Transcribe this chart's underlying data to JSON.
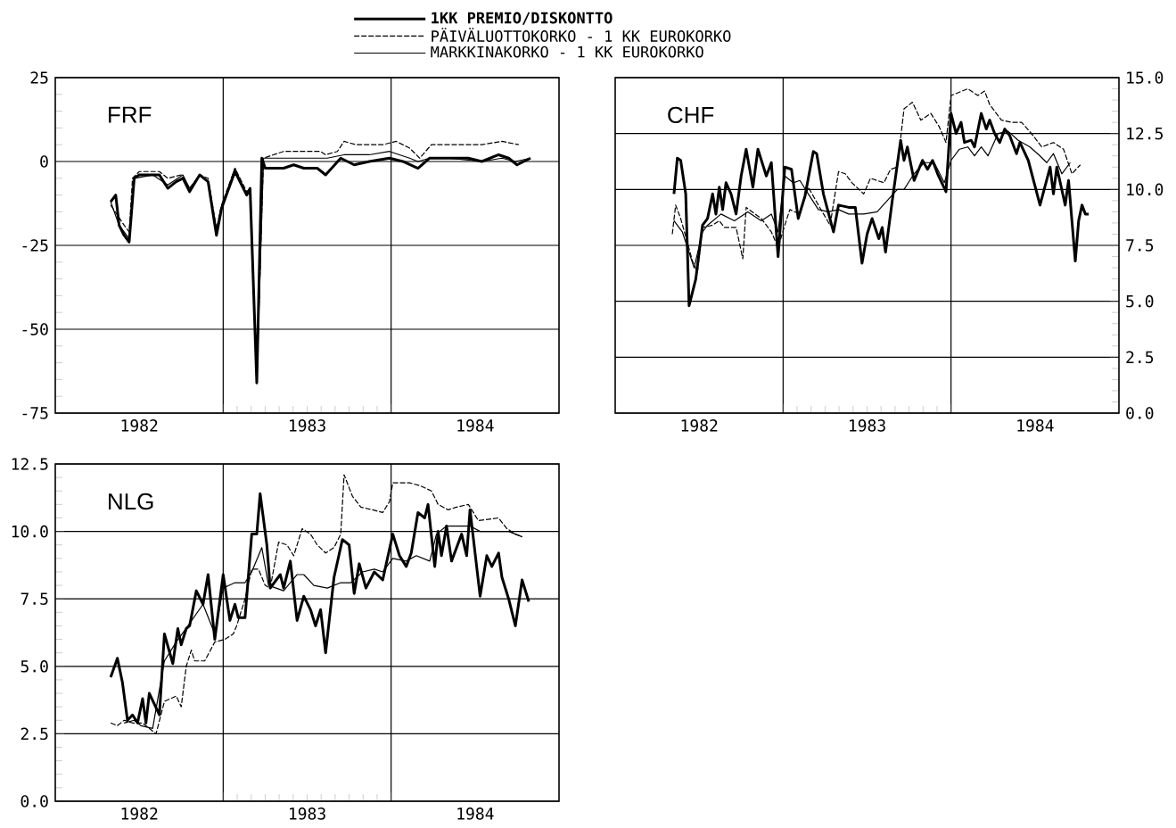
{
  "chart_data": [
    {
      "type": "line",
      "title": "FRF",
      "xlim": [
        1982,
        1985
      ],
      "xticks": [
        {
          "value": 1982.5,
          "label": "1982"
        },
        {
          "value": 1983,
          "label": null
        },
        {
          "value": 1983.5,
          "label": "1983"
        },
        {
          "value": 1984,
          "label": null
        },
        {
          "value": 1984.5,
          "label": "1984"
        }
      ],
      "ylim": [
        -75,
        25
      ],
      "yticks": [
        -75,
        -50,
        -25,
        0,
        25
      ],
      "grid": true,
      "legend": "top",
      "series": [
        {
          "name": "1KK PREMIO/DISKONTTO",
          "color": "#000000",
          "line_style": "solid",
          "x": [
            1982.33,
            1982.36,
            1982.38,
            1982.41,
            1982.44,
            1982.47,
            1982.5,
            1982.58,
            1982.62,
            1982.67,
            1982.72,
            1982.76,
            1982.8,
            1982.86,
            1982.91,
            1982.96,
            1982.99,
            1983.07,
            1983.14,
            1983.16,
            1983.2,
            1983.23,
            1983.25,
            1983.36,
            1983.42,
            1983.48,
            1983.56,
            1983.61,
            1983.7,
            1983.78,
            1983.87,
            1983.99,
            1984.07,
            1984.16,
            1984.23,
            1984.34,
            1984.46,
            1984.54,
            1984.64,
            1984.7,
            1984.75,
            1984.83
          ],
          "values": [
            -12,
            -10,
            -19,
            -22,
            -24,
            -5,
            -4,
            -4,
            -4,
            -8,
            -6,
            -5,
            -9,
            -4,
            -6,
            -22,
            -14,
            -3,
            -10,
            -8,
            -66,
            1,
            -2,
            -2,
            -1,
            -2,
            -2,
            -4,
            1,
            -1,
            0,
            1,
            0,
            -2,
            1,
            1,
            1,
            0,
            2,
            1,
            -1,
            1
          ]
        },
        {
          "name": "PÄIVÄLUOTTOKORKO - 1 KK EUROKORKO",
          "color": "#000000",
          "line_style": "dashed",
          "x": [
            1982.33,
            1982.41,
            1982.44,
            1982.46,
            1982.5,
            1982.62,
            1982.67,
            1982.75,
            1982.8,
            1982.86,
            1982.91,
            1982.96,
            1982.99,
            1983.07,
            1983.14,
            1983.16,
            1983.2,
            1983.24,
            1983.36,
            1983.58,
            1983.61,
            1983.68,
            1983.72,
            1983.79,
            1983.95,
            1984.03,
            1984.11,
            1984.17,
            1984.24,
            1984.34,
            1984.54,
            1984.66,
            1984.76
          ],
          "values": [
            -13,
            -19,
            -21,
            -5,
            -3,
            -3,
            -5,
            -4,
            -8,
            -4,
            -5,
            -20,
            -13,
            -2,
            -9,
            -8,
            -65,
            1,
            3,
            3,
            2,
            3,
            6,
            5,
            5,
            6,
            4,
            1,
            5,
            5,
            5,
            6,
            5
          ]
        },
        {
          "name": "MARKKINAKORKO - 1 KK EUROKORKO",
          "color": "#000000",
          "line_style": "solid",
          "x": [
            1982.33,
            1982.38,
            1982.44,
            1982.47,
            1982.58,
            1982.67,
            1982.76,
            1982.8,
            1982.86,
            1982.91,
            1982.96,
            1982.99,
            1983.07,
            1983.14,
            1983.16,
            1983.2,
            1983.24,
            1983.36,
            1983.56,
            1983.62,
            1983.72,
            1983.87,
            1983.99,
            1984.11,
            1984.16,
            1984.23,
            1984.34,
            1984.54,
            1984.66,
            1984.74,
            1984.83
          ],
          "values": [
            -12,
            -19,
            -23,
            -5,
            -4,
            -7,
            -4,
            -8,
            -4,
            -6,
            -21,
            -14,
            -2,
            -10,
            -8,
            -66,
            1,
            1,
            1,
            1,
            2,
            2,
            3,
            1,
            0,
            1,
            1,
            0,
            1,
            0,
            1
          ]
        }
      ]
    },
    {
      "type": "line",
      "title": "CHF",
      "xlim": [
        1982,
        1985
      ],
      "xticks": [
        {
          "value": 1982.5,
          "label": "1982"
        },
        {
          "value": 1983,
          "label": null
        },
        {
          "value": 1983.5,
          "label": "1983"
        },
        {
          "value": 1984,
          "label": null
        },
        {
          "value": 1984.5,
          "label": "1984"
        }
      ],
      "y2lim": [
        0,
        15
      ],
      "y2ticks": [
        {
          "value": 0,
          "label": "0.0"
        },
        2.5,
        {
          "value": 5,
          "label": "5.0"
        },
        7.5,
        {
          "value": 10,
          "label": "10.0"
        },
        12.5,
        {
          "value": 15,
          "label": "15.0"
        }
      ],
      "grid": true,
      "series": [
        {
          "axis": "y2",
          "color": "#000000",
          "line_style": "solid",
          "x": [
            1982.35,
            1982.37,
            1982.39,
            1982.42,
            1982.44,
            1982.48,
            1982.52,
            1982.55,
            1982.58,
            1982.6,
            1982.62,
            1982.64,
            1982.66,
            1982.69,
            1982.72,
            1982.75,
            1982.78,
            1982.82,
            1982.85,
            1982.9,
            1982.93,
            1982.97,
            1983.01,
            1983.05,
            1983.09,
            1983.13,
            1983.18,
            1983.2,
            1983.24,
            1983.3,
            1983.33,
            1983.39,
            1983.43,
            1983.47,
            1983.5,
            1983.53,
            1983.57,
            1983.59,
            1983.61,
            1983.65,
            1983.7,
            1983.72,
            1983.74,
            1983.78,
            1983.83,
            1983.86,
            1983.89,
            1983.92,
            1983.97,
            1984.0,
            1984.03,
            1984.06,
            1984.08,
            1984.12,
            1984.14,
            1984.18,
            1984.21,
            1984.23,
            1984.26,
            1984.29,
            1984.32,
            1984.35,
            1984.39,
            1984.41,
            1984.46,
            1984.53,
            1984.59,
            1984.61,
            1984.63,
            1984.68,
            1984.7,
            1984.74,
            1984.76,
            1984.78,
            1984.8,
            1984.82
          ],
          "values": [
            9.8,
            11.4,
            11.3,
            9.8,
            4.8,
            6.0,
            8.4,
            8.7,
            9.8,
            8.9,
            10.1,
            9.1,
            10.3,
            9.8,
            8.9,
            10.6,
            11.8,
            10.1,
            11.8,
            10.6,
            11.2,
            7.0,
            11.0,
            10.9,
            8.7,
            9.7,
            11.7,
            11.6,
            9.8,
            8.1,
            9.3,
            9.2,
            9.2,
            6.7,
            8.0,
            8.7,
            7.8,
            8.3,
            7.2,
            9.5,
            12.2,
            11.3,
            11.9,
            10.4,
            11.3,
            10.9,
            11.3,
            10.7,
            9.9,
            13.4,
            12.5,
            13.0,
            12.1,
            12.2,
            11.9,
            13.4,
            12.7,
            13.1,
            12.5,
            12.1,
            12.7,
            12.4,
            11.6,
            12.1,
            11.3,
            9.3,
            11.0,
            9.8,
            11.0,
            9.3,
            10.4,
            6.8,
            8.6,
            9.3,
            8.9,
            8.9
          ]
        },
        {
          "axis": "y2",
          "color": "#000000",
          "line_style": "dashed",
          "x": [
            1982.34,
            1982.36,
            1982.39,
            1982.42,
            1982.46,
            1982.49,
            1982.52,
            1982.58,
            1982.62,
            1982.65,
            1982.72,
            1982.76,
            1982.78,
            1982.87,
            1982.93,
            1982.97,
            1983.01,
            1983.04,
            1983.1,
            1983.15,
            1983.21,
            1983.28,
            1983.33,
            1983.37,
            1983.41,
            1983.48,
            1983.52,
            1983.6,
            1983.64,
            1983.68,
            1983.72,
            1983.77,
            1983.82,
            1983.88,
            1983.93,
            1983.97,
            1984.0,
            1984.1,
            1984.16,
            1984.2,
            1984.23,
            1984.3,
            1984.36,
            1984.42,
            1984.49,
            1984.54,
            1984.61,
            1984.67,
            1984.72,
            1984.77
          ],
          "values": [
            8.0,
            9.3,
            8.7,
            7.9,
            6.8,
            6.3,
            8.3,
            8.4,
            8.6,
            8.3,
            8.3,
            6.9,
            9.2,
            8.7,
            8.1,
            7.4,
            8.4,
            9.1,
            8.9,
            10.1,
            9.3,
            8.4,
            10.8,
            10.7,
            10.3,
            9.8,
            10.5,
            10.3,
            10.9,
            11.0,
            13.6,
            13.9,
            13.1,
            13.4,
            12.8,
            12.1,
            14.2,
            14.5,
            14.2,
            14.4,
            13.8,
            13.1,
            13.0,
            13.0,
            12.4,
            11.9,
            12.1,
            11.8,
            10.7,
            11.1
          ]
        },
        {
          "axis": "y2",
          "color": "#000000",
          "line_style": "solid",
          "x": [
            1982.35,
            1982.4,
            1982.47,
            1982.52,
            1982.55,
            1982.63,
            1982.71,
            1982.79,
            1982.87,
            1982.93,
            1982.97,
            1983.01,
            1983.06,
            1983.1,
            1983.15,
            1983.21,
            1983.27,
            1983.33,
            1983.39,
            1983.48,
            1983.56,
            1983.62,
            1983.68,
            1983.72,
            1983.78,
            1983.84,
            1983.9,
            1983.96,
            1984.0,
            1984.05,
            1984.1,
            1984.14,
            1984.18,
            1984.22,
            1984.28,
            1984.34,
            1984.4,
            1984.47,
            1984.53,
            1984.57,
            1984.61,
            1984.66,
            1984.71
          ],
          "values": [
            8.6,
            8.1,
            6.5,
            8.1,
            8.4,
            8.9,
            8.6,
            9.0,
            8.6,
            8.9,
            8.1,
            10.6,
            10.3,
            10.4,
            9.8,
            9.1,
            9.0,
            9.1,
            8.9,
            8.9,
            9.0,
            9.5,
            10.0,
            10.0,
            10.7,
            11.2,
            11.2,
            10.3,
            11.3,
            11.8,
            11.9,
            11.5,
            11.9,
            11.5,
            12.5,
            12.6,
            12.2,
            11.9,
            11.5,
            11.2,
            11.6,
            10.7,
            11.2
          ]
        }
      ]
    },
    {
      "type": "line",
      "title": "NLG",
      "xlim": [
        1982,
        1985
      ],
      "xticks": [
        {
          "value": 1982.5,
          "label": "1982"
        },
        {
          "value": 1983,
          "label": null
        },
        {
          "value": 1983.5,
          "label": "1983"
        },
        {
          "value": 1984,
          "label": null
        },
        {
          "value": 1984.5,
          "label": "1984"
        }
      ],
      "ylim": [
        0,
        12.5
      ],
      "yticks": [
        {
          "value": 0,
          "label": "0.0"
        },
        2.5,
        {
          "value": 5,
          "label": "5.0"
        },
        7.5,
        {
          "value": 10,
          "label": "10.0"
        },
        12.5
      ],
      "grid": true,
      "series": [
        {
          "color": "#000000",
          "line_style": "solid",
          "x": [
            1982.33,
            1982.37,
            1982.4,
            1982.43,
            1982.46,
            1982.49,
            1982.52,
            1982.54,
            1982.56,
            1982.59,
            1982.62,
            1982.65,
            1982.7,
            1982.73,
            1982.75,
            1982.78,
            1982.8,
            1982.84,
            1982.88,
            1982.91,
            1982.95,
            1983.0,
            1983.04,
            1983.07,
            1983.09,
            1983.13,
            1983.17,
            1983.2,
            1983.22,
            1983.26,
            1983.28,
            1983.34,
            1983.36,
            1983.4,
            1983.44,
            1983.48,
            1983.52,
            1983.55,
            1983.58,
            1983.61,
            1983.66,
            1983.71,
            1983.75,
            1983.78,
            1983.81,
            1983.85,
            1983.9,
            1983.95,
            1984.01,
            1984.05,
            1984.09,
            1984.12,
            1984.16,
            1984.2,
            1984.22,
            1984.26,
            1984.28,
            1984.3,
            1984.33,
            1984.36,
            1984.42,
            1984.45,
            1984.47,
            1984.53,
            1984.57,
            1984.6,
            1984.64,
            1984.66,
            1984.7,
            1984.74,
            1984.78,
            1984.82
          ],
          "values": [
            4.6,
            5.3,
            4.4,
            3.0,
            3.2,
            2.9,
            3.8,
            2.9,
            4.0,
            3.6,
            3.2,
            6.2,
            5.1,
            6.4,
            5.8,
            6.4,
            6.5,
            7.8,
            7.3,
            8.4,
            6.0,
            8.4,
            6.7,
            7.3,
            6.8,
            6.8,
            9.9,
            9.9,
            11.4,
            9.5,
            7.9,
            8.4,
            7.9,
            8.9,
            6.7,
            7.6,
            7.1,
            6.5,
            7.1,
            5.5,
            8.3,
            9.7,
            9.5,
            7.7,
            8.8,
            7.9,
            8.5,
            8.2,
            9.9,
            9.1,
            8.7,
            9.2,
            10.7,
            10.5,
            11.0,
            8.7,
            10.0,
            9.1,
            10.2,
            8.9,
            9.9,
            9.1,
            10.8,
            7.6,
            9.1,
            8.7,
            9.2,
            8.3,
            7.5,
            6.5,
            8.2,
            7.4
          ]
        },
        {
          "color": "#000000",
          "line_style": "dashed",
          "x": [
            1982.33,
            1982.37,
            1982.41,
            1982.46,
            1982.52,
            1982.6,
            1982.65,
            1982.72,
            1982.75,
            1982.78,
            1982.81,
            1982.83,
            1982.89,
            1982.95,
            1983.01,
            1983.06,
            1983.08,
            1983.13,
            1983.17,
            1983.21,
            1983.25,
            1983.28,
            1983.33,
            1983.38,
            1983.42,
            1983.47,
            1983.52,
            1983.56,
            1983.61,
            1983.66,
            1983.7,
            1983.72,
            1983.77,
            1983.82,
            1983.89,
            1983.95,
            1983.99,
            1984.01,
            1984.11,
            1984.17,
            1984.24,
            1984.28,
            1984.34,
            1984.39,
            1984.46,
            1984.52,
            1984.64,
            1984.69,
            1984.74,
            1984.78
          ],
          "values": [
            2.9,
            2.8,
            3.0,
            2.9,
            2.9,
            2.5,
            3.7,
            3.9,
            3.5,
            5.0,
            5.6,
            5.2,
            5.2,
            5.9,
            6.0,
            6.2,
            6.5,
            7.5,
            8.6,
            8.6,
            8.0,
            7.9,
            9.6,
            9.5,
            9.1,
            10.1,
            9.9,
            9.5,
            9.2,
            9.4,
            9.9,
            12.1,
            11.3,
            10.9,
            10.8,
            10.7,
            11.1,
            11.8,
            11.8,
            11.7,
            11.5,
            11.0,
            10.8,
            10.9,
            11.0,
            10.4,
            10.5,
            10.1,
            9.9,
            9.8
          ]
        },
        {
          "color": "#000000",
          "line_style": "solid",
          "x": [
            1982.41,
            1982.47,
            1982.51,
            1982.58,
            1982.65,
            1982.72,
            1982.79,
            1982.88,
            1982.95,
            1983.0,
            1983.07,
            1983.13,
            1983.17,
            1983.23,
            1983.27,
            1983.36,
            1983.44,
            1983.48,
            1983.54,
            1983.62,
            1983.7,
            1983.76,
            1983.83,
            1983.9,
            1983.95,
            1984.01,
            1984.09,
            1984.15,
            1984.23,
            1984.27,
            1984.33,
            1984.4,
            1984.47,
            1984.53,
            1984.62,
            1984.7,
            1984.78
          ],
          "values": [
            2.9,
            3.0,
            2.8,
            2.7,
            5.2,
            5.9,
            6.5,
            7.3,
            6.2,
            7.9,
            8.1,
            8.1,
            8.5,
            9.4,
            8.0,
            7.8,
            8.4,
            8.4,
            8.0,
            7.9,
            8.1,
            8.1,
            8.5,
            8.6,
            8.5,
            9.0,
            8.9,
            9.1,
            8.9,
            9.9,
            10.2,
            10.2,
            10.2,
            10.0,
            10.0,
            10.0,
            9.8
          ]
        }
      ]
    }
  ]
}
